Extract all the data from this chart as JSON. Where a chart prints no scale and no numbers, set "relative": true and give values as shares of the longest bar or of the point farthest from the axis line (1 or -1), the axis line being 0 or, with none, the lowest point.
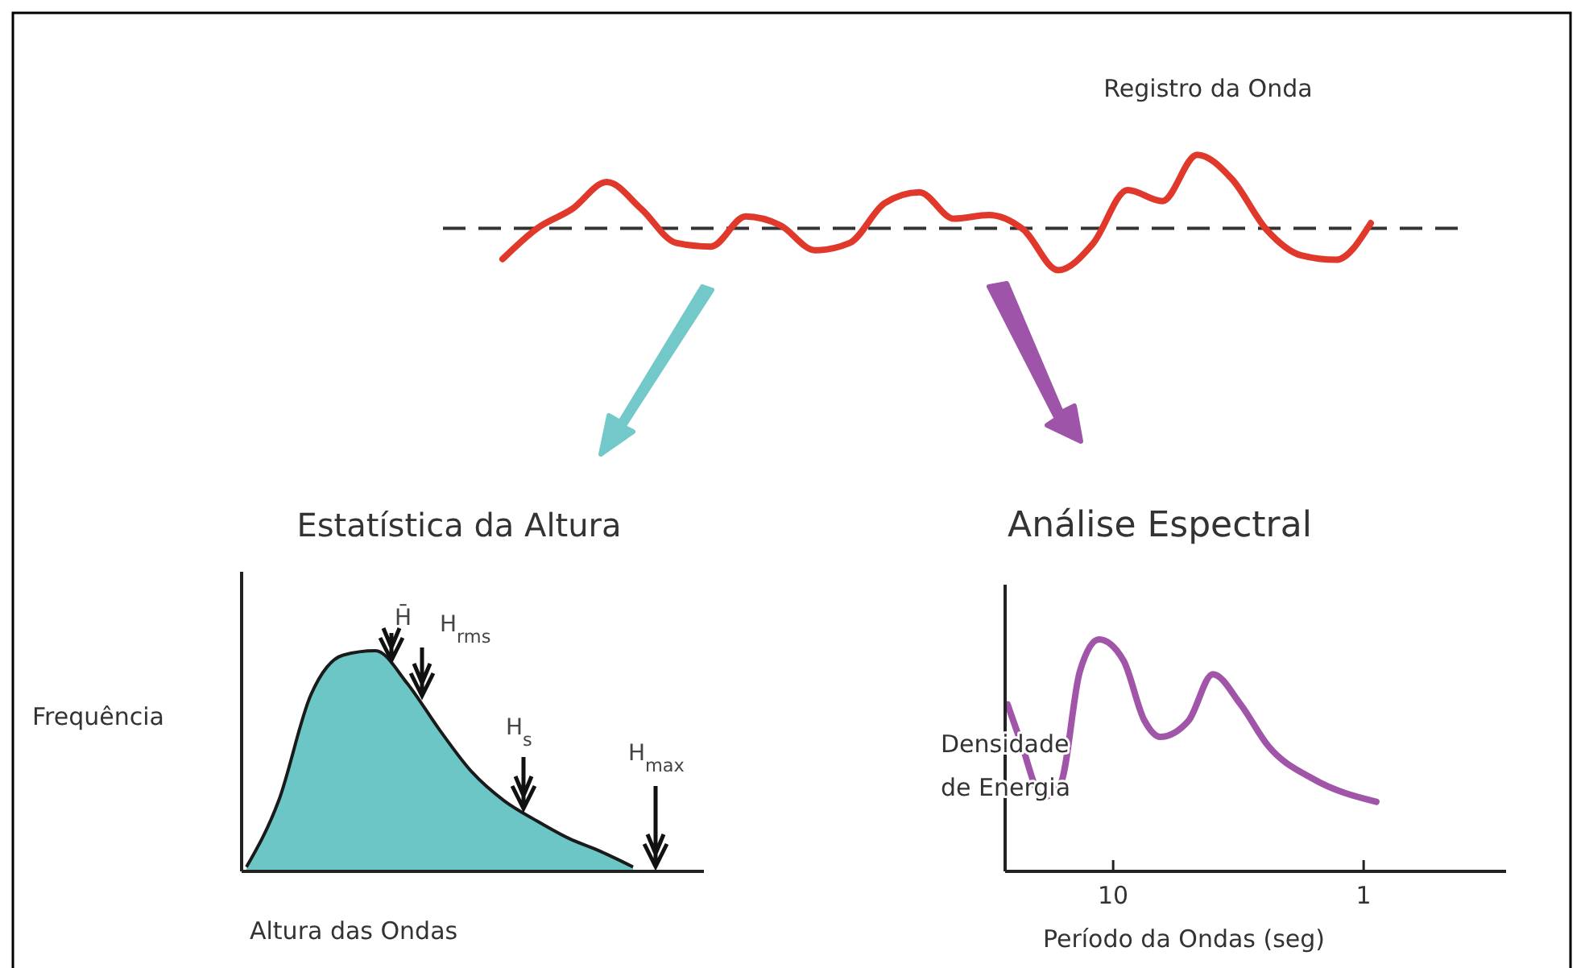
{
  "chart_data": [
    {
      "type": "line",
      "title": "Registro da Onda",
      "relative": true,
      "color": "#e0392b",
      "categories": [
        null,
        null,
        null,
        null,
        null,
        null,
        null,
        null,
        null,
        null,
        null,
        null,
        null,
        null,
        null,
        null,
        null,
        null,
        null,
        null,
        null,
        null,
        null,
        null,
        null,
        null
      ],
      "values": [
        -0.42,
        0,
        0.26,
        0.63,
        0.26,
        -0.2,
        -0.25,
        0.16,
        0.04,
        -0.3,
        -0.2,
        0.34,
        0.49,
        0.13,
        0.18,
        -0.02,
        -0.57,
        -0.21,
        0.52,
        0.37,
        1,
        0.67,
        -0.02,
        -0.37,
        -0.43,
        0.07
      ],
      "ref_lines": [
        {
          "axis": "y",
          "value": 0,
          "color": "#333333",
          "line_style": "dashed"
        }
      ]
    },
    {
      "type": "area",
      "title": "Estatística da Altura",
      "xlabel": "Altura das Ondas",
      "ylabel": "Frequência",
      "relative": true,
      "color": "#6cc6c6",
      "categories": [
        null,
        null,
        null,
        null,
        null,
        null,
        null,
        null,
        null,
        null,
        null,
        null,
        null,
        null,
        null
      ],
      "values": [
        0.02,
        0.32,
        0.8,
        0.98,
        1,
        0.85,
        0.64,
        0.45,
        0.32,
        0.23,
        0.15,
        0.09,
        0.02,
        null,
        null
      ],
      "annotations": [
        "H̄",
        "H$_{rms}$",
        "H$_{s}$",
        "H$_{max}$"
      ]
    },
    {
      "type": "line",
      "title": "Análise Espectral",
      "xlabel": "Período da Ondas (seg)",
      "ylabel": "Densidade de Energia",
      "relative": true,
      "color": "#a155a9",
      "log": "x",
      "xlim": [
        27,
        0.27
      ],
      "xticks": [
        10,
        1
      ],
      "x": [
        26.4,
        23.4,
        19.1,
        16.2,
        13.6,
        11.4,
        9.1,
        7.5,
        6.5,
        5.0,
        4.0,
        3.1,
        2.4,
        1.6,
        0.89
      ],
      "values": [
        0.72,
        0.56,
        0.32,
        0.38,
        0.86,
        1,
        0.91,
        0.65,
        0.58,
        0.65,
        0.85,
        0.72,
        0.54,
        0.4,
        0.3
      ]
    }
  ]
}
